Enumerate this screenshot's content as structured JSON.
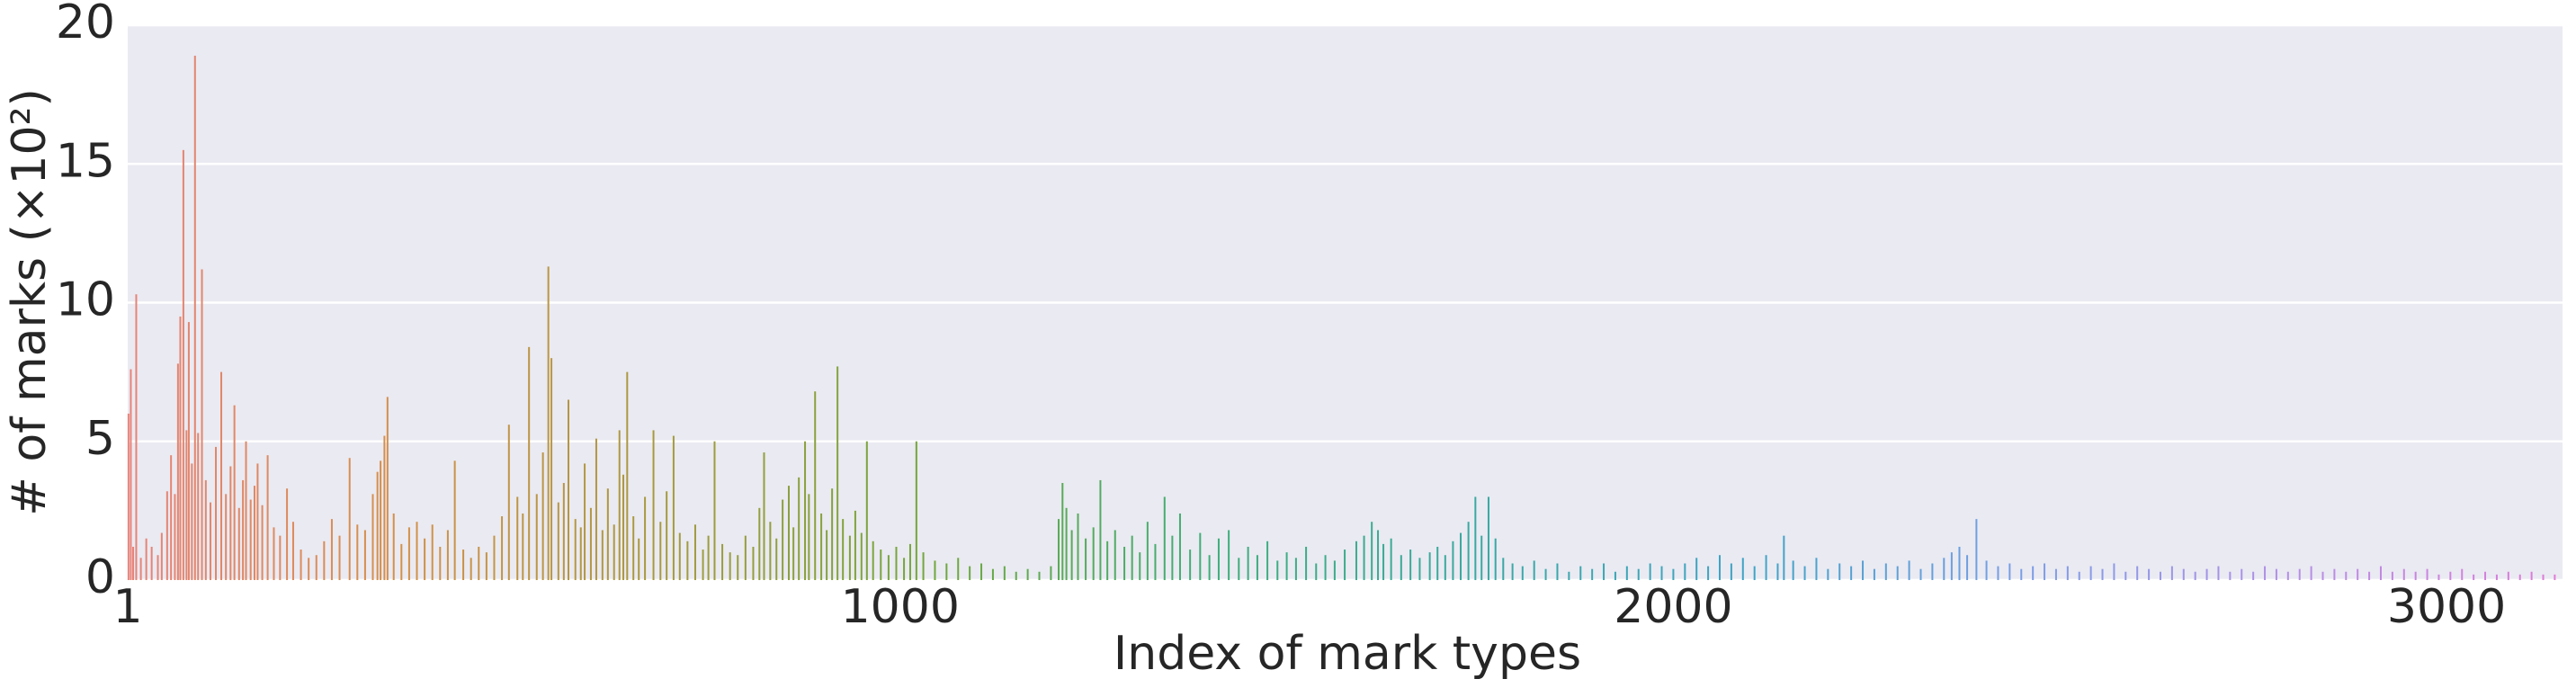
{
  "chart_data": {
    "type": "bar",
    "xlabel": "Index of mark types",
    "ylabel": "# of marks (×10²)",
    "xlim": [
      1,
      3150
    ],
    "xticks": [
      1,
      1000,
      2000,
      3000
    ],
    "ylim": [
      0,
      20
    ],
    "yticks": [
      0,
      5,
      10,
      15,
      20
    ],
    "grid": true,
    "color_stops": [
      "#e8837a",
      "#d4904a",
      "#a59a3f",
      "#6fa83c",
      "#3fae78",
      "#3aa9a2",
      "#3fa3c6",
      "#7a9ee6",
      "#b48fe6",
      "#e07ad6"
    ],
    "x": [
      2,
      5,
      8,
      12,
      18,
      25,
      32,
      40,
      45,
      52,
      57,
      62,
      66,
      69,
      73,
      77,
      80,
      84,
      88,
      92,
      97,
      102,
      108,
      115,
      122,
      128,
      134,
      139,
      145,
      150,
      154,
      160,
      165,
      169,
      175,
      182,
      190,
      198,
      207,
      215,
      225,
      235,
      245,
      255,
      265,
      275,
      288,
      298,
      308,
      318,
      324,
      328,
      333,
      337,
      345,
      355,
      365,
      375,
      385,
      395,
      405,
      415,
      424,
      435,
      445,
      455,
      465,
      475,
      485,
      494,
      505,
      512,
      520,
      530,
      538,
      545,
      549,
      558,
      565,
      571,
      580,
      587,
      592,
      600,
      607,
      615,
      622,
      630,
      637,
      642,
      647,
      655,
      662,
      670,
      681,
      690,
      698,
      707,
      715,
      725,
      735,
      745,
      752,
      760,
      770,
      780,
      790,
      800,
      810,
      818,
      824,
      832,
      840,
      848,
      856,
      862,
      869,
      877,
      882,
      890,
      898,
      905,
      912,
      919,
      926,
      935,
      942,
      950,
      957,
      965,
      975,
      985,
      995,
      1005,
      1013,
      1021,
      1030,
      1045,
      1060,
      1075,
      1090,
      1105,
      1120,
      1135,
      1150,
      1165,
      1180,
      1195,
      1205,
      1210,
      1215,
      1222,
      1230,
      1240,
      1250,
      1259,
      1268,
      1278,
      1290,
      1300,
      1310,
      1320,
      1330,
      1342,
      1352,
      1362,
      1375,
      1388,
      1400,
      1412,
      1425,
      1438,
      1450,
      1462,
      1475,
      1488,
      1500,
      1512,
      1525,
      1538,
      1550,
      1562,
      1575,
      1590,
      1600,
      1610,
      1618,
      1625,
      1635,
      1648,
      1660,
      1672,
      1685,
      1695,
      1705,
      1715,
      1725,
      1735,
      1744,
      1752,
      1761,
      1770,
      1780,
      1792,
      1805,
      1820,
      1835,
      1850,
      1865,
      1880,
      1895,
      1910,
      1925,
      1940,
      1955,
      1970,
      1985,
      2000,
      2015,
      2030,
      2045,
      2060,
      2075,
      2090,
      2105,
      2120,
      2135,
      2143,
      2155,
      2170,
      2185,
      2200,
      2215,
      2230,
      2245,
      2260,
      2275,
      2290,
      2305,
      2320,
      2335,
      2350,
      2360,
      2370,
      2380,
      2392,
      2405,
      2420,
      2435,
      2450,
      2465,
      2480,
      2495,
      2510,
      2525,
      2540,
      2555,
      2570,
      2585,
      2600,
      2615,
      2630,
      2645,
      2660,
      2675,
      2690,
      2705,
      2720,
      2735,
      2750,
      2765,
      2780,
      2795,
      2810,
      2825,
      2840,
      2855,
      2870,
      2885,
      2900,
      2915,
      2930,
      2945,
      2960,
      2975,
      2990,
      3005,
      3020,
      3035,
      3050,
      3065,
      3080,
      3095,
      3110,
      3125,
      3140
    ],
    "values": [
      6,
      7.6,
      1.2,
      10.3,
      0.8,
      1.5,
      1.2,
      0.9,
      1.7,
      3.2,
      4.5,
      3.1,
      7.8,
      9.5,
      15.5,
      5.4,
      9.3,
      4.2,
      18.9,
      5.3,
      11.2,
      3.6,
      2.8,
      4.8,
      7.5,
      3.1,
      4.1,
      6.3,
      2.6,
      3.6,
      5.0,
      2.9,
      3.4,
      4.2,
      2.7,
      4.5,
      1.9,
      1.6,
      3.3,
      2.1,
      1.1,
      0.8,
      0.9,
      1.4,
      2.2,
      1.6,
      4.4,
      2.0,
      1.8,
      3.1,
      3.9,
      4.3,
      5.2,
      6.6,
      2.4,
      1.3,
      1.9,
      2.1,
      1.5,
      2.0,
      1.2,
      1.8,
      4.3,
      1.1,
      0.8,
      1.2,
      1.0,
      1.6,
      2.3,
      5.6,
      3.0,
      2.4,
      8.4,
      3.1,
      4.6,
      11.3,
      8.0,
      2.8,
      3.5,
      6.5,
      2.2,
      1.9,
      4.2,
      2.6,
      5.1,
      1.8,
      3.3,
      2.0,
      5.4,
      3.8,
      7.5,
      2.3,
      1.5,
      3.0,
      5.4,
      2.1,
      3.2,
      5.2,
      1.7,
      1.4,
      2.0,
      1.1,
      1.6,
      5.0,
      1.3,
      1.0,
      0.9,
      1.6,
      1.2,
      2.6,
      4.6,
      2.1,
      1.5,
      2.9,
      3.4,
      1.9,
      3.7,
      5.0,
      3.1,
      6.8,
      2.4,
      1.8,
      3.3,
      7.7,
      2.2,
      1.6,
      2.5,
      1.7,
      5.0,
      1.4,
      1.1,
      0.9,
      1.2,
      0.8,
      1.3,
      5.0,
      1.0,
      0.7,
      0.6,
      0.8,
      0.5,
      0.6,
      0.4,
      0.5,
      0.3,
      0.4,
      0.3,
      0.5,
      2.2,
      3.5,
      2.6,
      1.8,
      2.4,
      1.5,
      1.9,
      3.6,
      1.4,
      1.8,
      1.2,
      1.6,
      1.0,
      2.1,
      1.3,
      3.0,
      1.6,
      2.4,
      1.1,
      1.7,
      0.9,
      1.5,
      1.8,
      0.8,
      1.2,
      0.9,
      1.4,
      0.7,
      1.0,
      0.8,
      1.2,
      0.6,
      0.9,
      0.7,
      1.1,
      1.4,
      1.6,
      2.1,
      1.8,
      1.3,
      1.5,
      0.9,
      1.1,
      0.8,
      1.0,
      1.2,
      0.9,
      1.4,
      1.7,
      2.1,
      3.0,
      1.6,
      3.0,
      1.5,
      0.8,
      0.6,
      0.5,
      0.7,
      0.4,
      0.6,
      0.3,
      0.5,
      0.4,
      0.6,
      0.3,
      0.5,
      0.4,
      0.6,
      0.5,
      0.4,
      0.6,
      0.8,
      0.5,
      0.9,
      0.6,
      0.8,
      0.5,
      0.9,
      0.6,
      1.6,
      0.7,
      0.5,
      0.8,
      0.4,
      0.6,
      0.5,
      0.7,
      0.4,
      0.6,
      0.5,
      0.7,
      0.4,
      0.6,
      0.8,
      1.0,
      1.2,
      0.9,
      2.2,
      0.7,
      0.5,
      0.6,
      0.4,
      0.5,
      0.6,
      0.4,
      0.5,
      0.3,
      0.5,
      0.4,
      0.6,
      0.3,
      0.5,
      0.4,
      0.3,
      0.5,
      0.4,
      0.3,
      0.4,
      0.5,
      0.3,
      0.4,
      0.3,
      0.5,
      0.4,
      0.3,
      0.4,
      0.5,
      0.3,
      0.4,
      0.3,
      0.4,
      0.3,
      0.5,
      0.3,
      0.4,
      0.3,
      0.4,
      0.2,
      0.3,
      0.4,
      0.2,
      0.3,
      0.2,
      0.3,
      0.2,
      0.3,
      0.2,
      0.2
    ]
  }
}
